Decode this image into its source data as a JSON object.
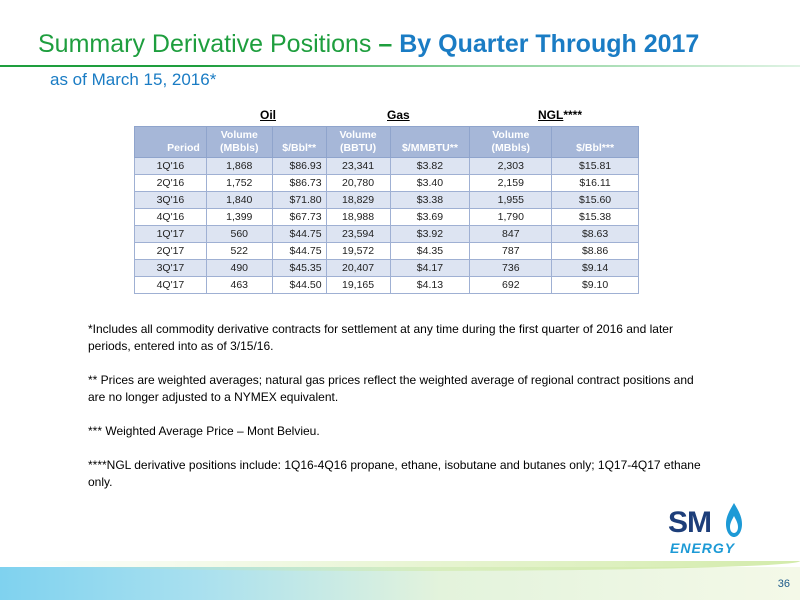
{
  "title": {
    "part1": "Summary Derivative Positions ",
    "dash": "–",
    "part2": " By Quarter Through 2017"
  },
  "subtitle": "as of March 15, 2016*",
  "groups": {
    "oil": "Oil",
    "gas": "Gas",
    "ngl": "NGL",
    "ngl_suffix": "****"
  },
  "columns": {
    "period": "Period",
    "oil_volume_line1": "Volume",
    "oil_volume_line2": "(MBbls)",
    "oil_price": "$/Bbl**",
    "gas_volume_line1": "Volume",
    "gas_volume_line2": "(BBTU)",
    "gas_price": "$/MMBTU**",
    "ngl_volume_line1": "Volume",
    "ngl_volume_line2": "(MBbls)",
    "ngl_price": "$/Bbl***"
  },
  "rows": [
    {
      "period": "1Q'16",
      "oil_vol": "1,868",
      "oil_price": "$86.93",
      "gas_vol": "23,341",
      "gas_price": "$3.82",
      "ngl_vol": "2,303",
      "ngl_price": "$15.81"
    },
    {
      "period": "2Q'16",
      "oil_vol": "1,752",
      "oil_price": "$86.73",
      "gas_vol": "20,780",
      "gas_price": "$3.40",
      "ngl_vol": "2,159",
      "ngl_price": "$16.11"
    },
    {
      "period": "3Q'16",
      "oil_vol": "1,840",
      "oil_price": "$71.80",
      "gas_vol": "18,829",
      "gas_price": "$3.38",
      "ngl_vol": "1,955",
      "ngl_price": "$15.60"
    },
    {
      "period": "4Q'16",
      "oil_vol": "1,399",
      "oil_price": "$67.73",
      "gas_vol": "18,988",
      "gas_price": "$3.69",
      "ngl_vol": "1,790",
      "ngl_price": "$15.38"
    },
    {
      "period": "1Q'17",
      "oil_vol": "560",
      "oil_price": "$44.75",
      "gas_vol": "23,594",
      "gas_price": "$3.92",
      "ngl_vol": "847",
      "ngl_price": "$8.63"
    },
    {
      "period": "2Q'17",
      "oil_vol": "522",
      "oil_price": "$44.75",
      "gas_vol": "19,572",
      "gas_price": "$4.35",
      "ngl_vol": "787",
      "ngl_price": "$8.86"
    },
    {
      "period": "3Q'17",
      "oil_vol": "490",
      "oil_price": "$45.35",
      "gas_vol": "20,407",
      "gas_price": "$4.17",
      "ngl_vol": "736",
      "ngl_price": "$9.14"
    },
    {
      "period": "4Q'17",
      "oil_vol": "463",
      "oil_price": "$44.50",
      "gas_vol": "19,165",
      "gas_price": "$4.13",
      "ngl_vol": "692",
      "ngl_price": "$9.10"
    }
  ],
  "notes": [
    "*Includes all commodity derivative contracts for settlement at any time during the first quarter of 2016 and later periods, entered into as of 3/15/16.",
    "** Prices are weighted averages; natural gas prices reflect the weighted average of regional contract positions and are no longer adjusted to a NYMEX equivalent.",
    "*** Weighted Average Price – Mont Belvieu.",
    "****NGL derivative positions include: 1Q16-4Q16 propane, ethane, isobutane and butanes only; 1Q17-4Q17 ethane only."
  ],
  "logo": {
    "sm": "SM",
    "energy": "ENERGY"
  },
  "colors": {
    "title_green": "#1e9e3e",
    "title_blue": "#1a7cc4",
    "header_fill": "#a6b7d8",
    "band_fill": "#dde4f2",
    "logo_navy": "#1d3e7a",
    "logo_blue": "#1d9ad6"
  },
  "page_number": "36"
}
